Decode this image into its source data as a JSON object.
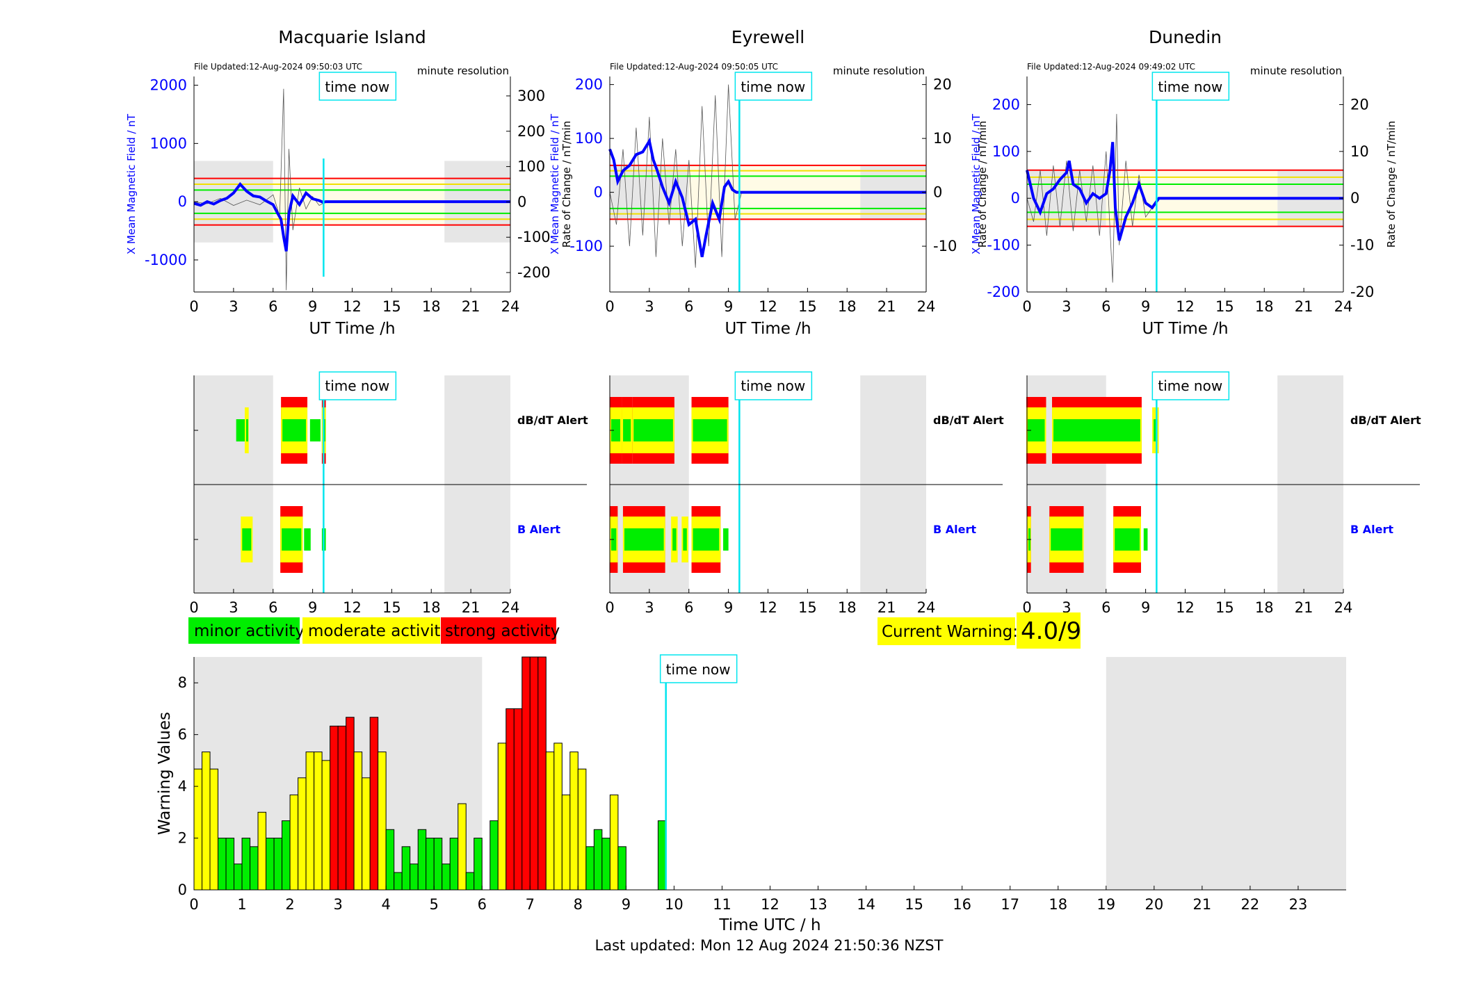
{
  "colors": {
    "green": "#00ee00",
    "yellow": "#ffff00",
    "red": "#ff0000",
    "blue": "#0000ff",
    "cyan": "#00e5ee",
    "shade": "#e6e6e6"
  },
  "common": {
    "time_now_label": "time now",
    "x_label": "UT Time /h",
    "resolution": "minute resolution",
    "left_axis_label": "X Mean Magnetic Field / nT",
    "right_axis_label": "Rate of Change / nT/min",
    "x_ticks": [
      0,
      3,
      6,
      9,
      12,
      15,
      18,
      21,
      24
    ],
    "time_now_h": 9.83,
    "night_shade": [
      [
        0,
        6
      ],
      [
        19,
        24
      ]
    ]
  },
  "stations": [
    {
      "name": "Macquarie Island",
      "file_updated": "File Updated:12-Aug-2024 09:50:03 UTC",
      "left_ticks": [
        -1000,
        0,
        1000,
        2000
      ],
      "left_ylim": [
        -1550,
        2150
      ],
      "right_ticks": [
        -200,
        -100,
        0,
        100,
        200,
        300
      ],
      "right_ylim": [
        -255,
        355
      ],
      "threshold_lines": [
        {
          "level": "green",
          "values": [
            200,
            -200
          ]
        },
        {
          "level": "yellow",
          "values": [
            300,
            -300
          ]
        },
        {
          "level": "red",
          "values": [
            400,
            -400
          ]
        }
      ],
      "band_fill": [
        -700,
        700
      ],
      "blue_series": [
        [
          0,
          -30
        ],
        [
          0.5,
          -60
        ],
        [
          1,
          0
        ],
        [
          1.5,
          -40
        ],
        [
          2,
          20
        ],
        [
          2.5,
          60
        ],
        [
          3,
          150
        ],
        [
          3.5,
          300
        ],
        [
          4,
          180
        ],
        [
          4.5,
          100
        ],
        [
          5,
          80
        ],
        [
          5.5,
          10
        ],
        [
          6,
          -50
        ],
        [
          6.3,
          -180
        ],
        [
          6.6,
          -300
        ],
        [
          6.8,
          -600
        ],
        [
          7,
          -850
        ],
        [
          7.2,
          -200
        ],
        [
          7.5,
          100
        ],
        [
          8,
          -50
        ],
        [
          8.5,
          150
        ],
        [
          9,
          50
        ],
        [
          9.5,
          20
        ],
        [
          9.8,
          -10
        ],
        [
          10,
          0
        ],
        [
          24,
          0
        ]
      ],
      "rate_series": [
        [
          0,
          0
        ],
        [
          1,
          -5
        ],
        [
          2,
          10
        ],
        [
          3,
          -10
        ],
        [
          4,
          5
        ],
        [
          5,
          -8
        ],
        [
          6,
          20
        ],
        [
          6.5,
          -40
        ],
        [
          6.8,
          320
        ],
        [
          7,
          -250
        ],
        [
          7.2,
          150
        ],
        [
          7.5,
          -80
        ],
        [
          8,
          40
        ],
        [
          8.5,
          -20
        ],
        [
          9,
          15
        ],
        [
          9.5,
          -10
        ],
        [
          10,
          0
        ]
      ],
      "dbdt_alert": [
        {
          "t": 3.6,
          "w": 0.8,
          "level": 1
        },
        {
          "t": 4.0,
          "w": 0.3,
          "level": 2
        },
        {
          "t": 7.6,
          "w": 2.0,
          "level": 3
        },
        {
          "t": 9.2,
          "w": 0.8,
          "level": 1
        },
        {
          "t": 9.85,
          "w": 0.3,
          "level": 3
        }
      ],
      "b_alert": [
        {
          "t": 4.0,
          "w": 0.9,
          "level": 2
        },
        {
          "t": 7.4,
          "w": 1.7,
          "level": 3
        },
        {
          "t": 8.6,
          "w": 0.5,
          "level": 1
        },
        {
          "t": 9.85,
          "w": 0.3,
          "level": 1
        }
      ]
    },
    {
      "name": "Eyrewell",
      "file_updated": "File Updated:12-Aug-2024 09:50:05 UTC",
      "left_ticks": [
        -100,
        0,
        100,
        200
      ],
      "left_ylim": [
        -185,
        215
      ],
      "right_ticks": [
        -10,
        0,
        10,
        20
      ],
      "right_ylim": [
        -18.5,
        21.5
      ],
      "threshold_lines": [
        {
          "level": "green",
          "values": [
            30,
            -30
          ]
        },
        {
          "level": "yellow",
          "values": [
            40,
            -40
          ]
        },
        {
          "level": "red",
          "values": [
            50,
            -50
          ]
        }
      ],
      "band_fill": [
        -50,
        50
      ],
      "blue_series": [
        [
          0,
          80
        ],
        [
          0.3,
          60
        ],
        [
          0.6,
          20
        ],
        [
          1,
          40
        ],
        [
          1.5,
          50
        ],
        [
          2,
          70
        ],
        [
          2.5,
          75
        ],
        [
          3,
          95
        ],
        [
          3.3,
          60
        ],
        [
          3.6,
          40
        ],
        [
          4,
          10
        ],
        [
          4.5,
          -20
        ],
        [
          5,
          20
        ],
        [
          5.5,
          -10
        ],
        [
          6,
          -60
        ],
        [
          6.5,
          -50
        ],
        [
          7,
          -120
        ],
        [
          7.3,
          -80
        ],
        [
          7.8,
          -20
        ],
        [
          8.3,
          -50
        ],
        [
          8.7,
          10
        ],
        [
          9,
          20
        ],
        [
          9.3,
          5
        ],
        [
          9.6,
          0
        ],
        [
          24,
          0
        ]
      ],
      "rate_series": [
        [
          0,
          0
        ],
        [
          0.5,
          -6
        ],
        [
          1,
          8
        ],
        [
          1.5,
          -10
        ],
        [
          2,
          12
        ],
        [
          2.5,
          -8
        ],
        [
          3,
          14
        ],
        [
          3.5,
          -12
        ],
        [
          4,
          10
        ],
        [
          4.5,
          -6
        ],
        [
          5,
          8
        ],
        [
          5.5,
          -10
        ],
        [
          6,
          6
        ],
        [
          6.5,
          -14
        ],
        [
          7,
          16
        ],
        [
          7.5,
          -10
        ],
        [
          8,
          18
        ],
        [
          8.5,
          -12
        ],
        [
          9,
          20
        ],
        [
          9.5,
          -5
        ],
        [
          10,
          0
        ]
      ],
      "dbdt_alert": [
        {
          "t": 0.45,
          "w": 0.9,
          "level": 3
        },
        {
          "t": 1.3,
          "w": 0.8,
          "level": 3
        },
        {
          "t": 3.3,
          "w": 3.2,
          "level": 3
        },
        {
          "t": 7.6,
          "w": 2.8,
          "level": 3
        }
      ],
      "b_alert": [
        {
          "t": 0.3,
          "w": 0.6,
          "level": 3
        },
        {
          "t": 2.6,
          "w": 3.2,
          "level": 3
        },
        {
          "t": 4.9,
          "w": 0.5,
          "level": 2
        },
        {
          "t": 5.7,
          "w": 0.5,
          "level": 2
        },
        {
          "t": 7.3,
          "w": 2.2,
          "level": 3
        },
        {
          "t": 8.8,
          "w": 0.4,
          "level": 1
        }
      ]
    },
    {
      "name": "Dunedin",
      "file_updated": "File Updated:12-Aug-2024 09:49:02 UTC",
      "left_ticks": [
        -200,
        -100,
        0,
        100,
        200
      ],
      "left_ylim": [
        -200,
        260
      ],
      "right_ticks": [
        -20,
        -10,
        0,
        10,
        20
      ],
      "right_ylim": [
        -20,
        26
      ],
      "threshold_lines": [
        {
          "level": "green",
          "values": [
            30,
            -30
          ]
        },
        {
          "level": "yellow",
          "values": [
            45,
            -45
          ]
        },
        {
          "level": "red",
          "values": [
            60,
            -60
          ]
        }
      ],
      "band_fill": [
        -60,
        60
      ],
      "blue_series": [
        [
          0,
          60
        ],
        [
          0.5,
          0
        ],
        [
          1,
          -30
        ],
        [
          1.5,
          10
        ],
        [
          2,
          20
        ],
        [
          2.5,
          40
        ],
        [
          3,
          55
        ],
        [
          3.2,
          80
        ],
        [
          3.5,
          30
        ],
        [
          4,
          20
        ],
        [
          4.5,
          -10
        ],
        [
          5,
          10
        ],
        [
          5.5,
          0
        ],
        [
          6,
          10
        ],
        [
          6.3,
          60
        ],
        [
          6.5,
          120
        ],
        [
          6.7,
          -20
        ],
        [
          7,
          -90
        ],
        [
          7.5,
          -40
        ],
        [
          8,
          -10
        ],
        [
          8.5,
          30
        ],
        [
          9,
          -10
        ],
        [
          9.5,
          -20
        ],
        [
          10,
          0
        ],
        [
          24,
          0
        ]
      ],
      "rate_series": [
        [
          0,
          0
        ],
        [
          0.5,
          -5
        ],
        [
          1,
          6
        ],
        [
          1.5,
          -8
        ],
        [
          2,
          7
        ],
        [
          2.5,
          -6
        ],
        [
          3,
          8
        ],
        [
          3.5,
          -7
        ],
        [
          4,
          6
        ],
        [
          4.5,
          -5
        ],
        [
          5,
          7
        ],
        [
          5.5,
          -8
        ],
        [
          6,
          10
        ],
        [
          6.5,
          -18
        ],
        [
          6.8,
          18
        ],
        [
          7,
          -10
        ],
        [
          7.5,
          8
        ],
        [
          8,
          -6
        ],
        [
          8.5,
          5
        ],
        [
          9,
          -4
        ],
        [
          10,
          0
        ]
      ],
      "dbdt_alert": [
        {
          "t": 0.7,
          "w": 1.5,
          "level": 3
        },
        {
          "t": 5.3,
          "w": 6.8,
          "level": 3
        },
        {
          "t": 9.75,
          "w": 0.5,
          "level": 2
        }
      ],
      "b_alert": [
        {
          "t": 0.15,
          "w": 0.3,
          "level": 3
        },
        {
          "t": 3.0,
          "w": 2.6,
          "level": 3
        },
        {
          "t": 7.6,
          "w": 2.1,
          "level": 3
        },
        {
          "t": 9.0,
          "w": 0.3,
          "level": 1
        }
      ]
    }
  ],
  "alerts": {
    "dbdt_label": "dB/dT Alert",
    "b_label": "B Alert"
  },
  "legend": {
    "minor": "minor activity",
    "moderate": "moderate activity",
    "strong": "strong activity"
  },
  "current_warning": {
    "label": "Current Warning:",
    "value": "4.0/9"
  },
  "chart_data": {
    "type": "bar",
    "ylabel": "Warning Values",
    "xlabel": "Time UTC / h",
    "xlim": [
      0,
      24
    ],
    "ylim": [
      0,
      9
    ],
    "x_ticks": [
      0,
      1,
      2,
      3,
      4,
      5,
      6,
      7,
      8,
      9,
      10,
      11,
      12,
      13,
      14,
      15,
      16,
      17,
      18,
      19,
      20,
      21,
      22,
      23
    ],
    "y_ticks": [
      0,
      2,
      4,
      6,
      8
    ],
    "bar_width_h": 0.1667,
    "night_shade": [
      [
        0,
        6
      ],
      [
        19,
        24
      ]
    ],
    "time_now_h": 9.83,
    "time_now_label": "time now",
    "bars": [
      {
        "t": 0.0,
        "v": 4.67
      },
      {
        "t": 0.167,
        "v": 5.33
      },
      {
        "t": 0.333,
        "v": 4.67
      },
      {
        "t": 0.5,
        "v": 2.0
      },
      {
        "t": 0.667,
        "v": 2.0
      },
      {
        "t": 0.833,
        "v": 1.0
      },
      {
        "t": 1.0,
        "v": 2.0
      },
      {
        "t": 1.167,
        "v": 1.67
      },
      {
        "t": 1.333,
        "v": 3.0
      },
      {
        "t": 1.5,
        "v": 2.0
      },
      {
        "t": 1.667,
        "v": 2.0
      },
      {
        "t": 1.833,
        "v": 2.67
      },
      {
        "t": 2.0,
        "v": 3.67
      },
      {
        "t": 2.167,
        "v": 4.33
      },
      {
        "t": 2.333,
        "v": 5.33
      },
      {
        "t": 2.5,
        "v": 5.33
      },
      {
        "t": 2.667,
        "v": 5.0
      },
      {
        "t": 2.833,
        "v": 6.33
      },
      {
        "t": 3.0,
        "v": 6.33
      },
      {
        "t": 3.167,
        "v": 6.67
      },
      {
        "t": 3.333,
        "v": 5.33
      },
      {
        "t": 3.5,
        "v": 4.33
      },
      {
        "t": 3.667,
        "v": 6.67
      },
      {
        "t": 3.833,
        "v": 5.33
      },
      {
        "t": 4.0,
        "v": 2.33
      },
      {
        "t": 4.167,
        "v": 0.67
      },
      {
        "t": 4.333,
        "v": 1.67
      },
      {
        "t": 4.5,
        "v": 1.0
      },
      {
        "t": 4.667,
        "v": 2.33
      },
      {
        "t": 4.833,
        "v": 2.0
      },
      {
        "t": 5.0,
        "v": 2.0
      },
      {
        "t": 5.167,
        "v": 1.0
      },
      {
        "t": 5.333,
        "v": 2.0
      },
      {
        "t": 5.5,
        "v": 3.33
      },
      {
        "t": 5.667,
        "v": 0.67
      },
      {
        "t": 5.833,
        "v": 2.0
      },
      {
        "t": 6.167,
        "v": 2.67
      },
      {
        "t": 6.333,
        "v": 5.67
      },
      {
        "t": 6.5,
        "v": 7.0
      },
      {
        "t": 6.667,
        "v": 7.0
      },
      {
        "t": 6.833,
        "v": 9.0
      },
      {
        "t": 7.0,
        "v": 9.0
      },
      {
        "t": 7.167,
        "v": 9.0
      },
      {
        "t": 7.333,
        "v": 5.33
      },
      {
        "t": 7.5,
        "v": 5.67
      },
      {
        "t": 7.667,
        "v": 3.67
      },
      {
        "t": 7.833,
        "v": 5.33
      },
      {
        "t": 8.0,
        "v": 4.67
      },
      {
        "t": 8.167,
        "v": 1.67
      },
      {
        "t": 8.333,
        "v": 2.33
      },
      {
        "t": 8.5,
        "v": 2.0
      },
      {
        "t": 8.667,
        "v": 3.67
      },
      {
        "t": 8.833,
        "v": 1.67
      },
      {
        "t": 9.667,
        "v": 2.67
      }
    ]
  },
  "footer": {
    "last_updated": "Last updated: Mon 12 Aug 2024 21:50:36 NZST"
  }
}
